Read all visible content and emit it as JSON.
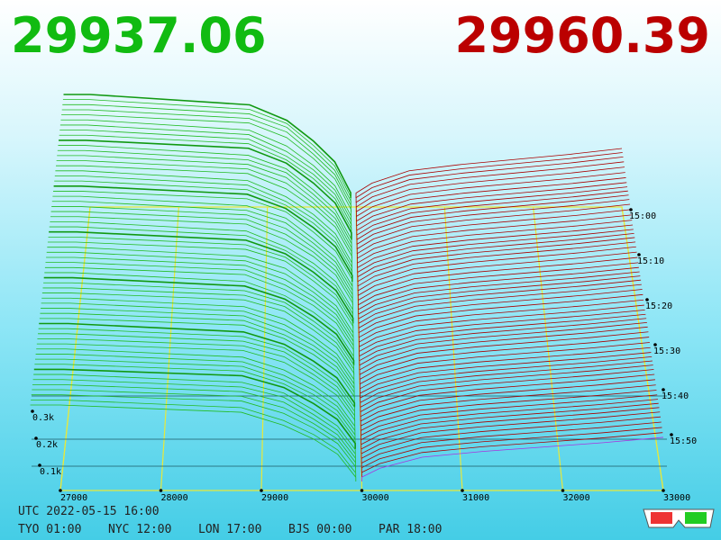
{
  "header": {
    "bid": "29937.06",
    "ask": "29960.39"
  },
  "axis": {
    "price_ticks": [
      "27000",
      "28000",
      "29000",
      "30000",
      "31000",
      "32000",
      "33000"
    ],
    "volume_ticks": [
      "0.3k",
      "0.2k",
      "0.1k"
    ],
    "time_ticks": [
      "15:00",
      "15:10",
      "15:20",
      "15:30",
      "15:40",
      "15:50"
    ]
  },
  "footer": {
    "utc": "UTC 2022-05-15 16:00",
    "zones": [
      "TYO 01:00",
      "NYC 12:00",
      "LON 17:00",
      "BJS 00:00",
      "PAR 18:00"
    ]
  }
}
